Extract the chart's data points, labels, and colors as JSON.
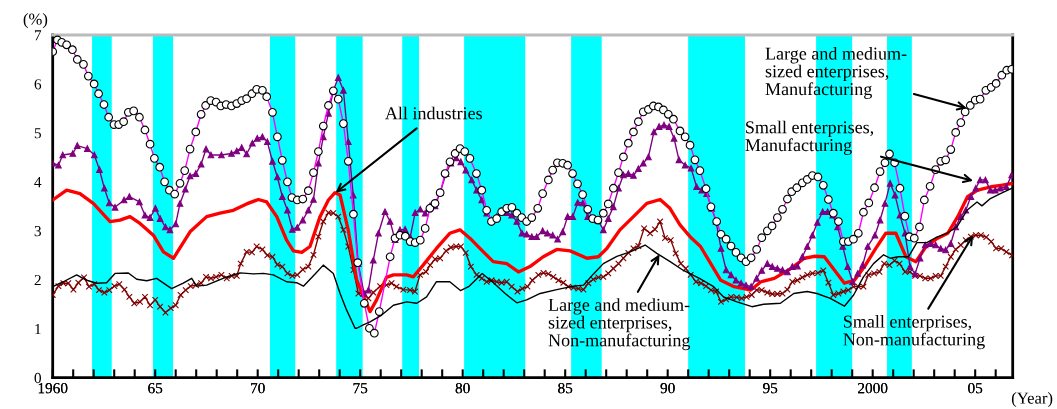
{
  "chart_data": {
    "type": "line",
    "ylabel": "(%)",
    "xlabel": "(Year)",
    "xlim": [
      1960,
      2006.83
    ],
    "ylim": [
      0,
      7
    ],
    "yticks": [
      0,
      1,
      2,
      3,
      4,
      5,
      6,
      7
    ],
    "xticks": [
      {
        "value": 1960,
        "label": null
      },
      {
        "value": 1961,
        "label": null
      },
      {
        "value": 1962,
        "label": null
      },
      {
        "value": 1963,
        "label": null
      },
      {
        "value": 1964,
        "label": null
      },
      {
        "value": 1965,
        "label": null
      },
      {
        "value": 1966,
        "label": null
      },
      {
        "value": 1967,
        "label": null
      },
      {
        "value": 1968,
        "label": null
      },
      {
        "value": 1969,
        "label": null
      },
      {
        "value": 1970,
        "label": null
      },
      {
        "value": 1971,
        "label": null
      },
      {
        "value": 1972,
        "label": null
      },
      {
        "value": 1973,
        "label": null
      },
      {
        "value": 1974,
        "label": null
      },
      {
        "value": 1975,
        "label": null
      },
      {
        "value": 1976,
        "label": null
      },
      {
        "value": 1977,
        "label": null
      },
      {
        "value": 1978,
        "label": null
      },
      {
        "value": 1979,
        "label": null
      },
      {
        "value": 1980,
        "label": null
      },
      {
        "value": 1981,
        "label": null
      },
      {
        "value": 1982,
        "label": null
      },
      {
        "value": 1983,
        "label": null
      },
      {
        "value": 1984,
        "label": null
      },
      {
        "value": 1985,
        "label": null
      },
      {
        "value": 1986,
        "label": null
      },
      {
        "value": 1987,
        "label": null
      },
      {
        "value": 1988,
        "label": null
      },
      {
        "value": 1989,
        "label": null
      },
      {
        "value": 1990,
        "label": null
      },
      {
        "value": 1991,
        "label": null
      },
      {
        "value": 1992,
        "label": null
      },
      {
        "value": 1993,
        "label": null
      },
      {
        "value": 1994,
        "label": null
      },
      {
        "value": 1995,
        "label": null
      },
      {
        "value": 1996,
        "label": null
      },
      {
        "value": 1997,
        "label": null
      },
      {
        "value": 1998,
        "label": null
      },
      {
        "value": 1999,
        "label": null
      },
      {
        "value": 2000,
        "label": null
      },
      {
        "value": 2001,
        "label": null
      },
      {
        "value": 2002,
        "label": null
      },
      {
        "value": 2003,
        "label": null
      },
      {
        "value": 2004,
        "label": null
      },
      {
        "value": 2005,
        "label": null
      },
      {
        "value": 2006,
        "label": null
      },
      {
        "value": 1960,
        "label": "1960"
      },
      {
        "value": 1965,
        "label": "65"
      },
      {
        "value": 1970,
        "label": "70"
      },
      {
        "value": 1975,
        "label": "75"
      },
      {
        "value": 1980,
        "label": "80"
      },
      {
        "value": 1985,
        "label": "85"
      },
      {
        "value": 1990,
        "label": "90"
      },
      {
        "value": 1995,
        "label": "95"
      },
      {
        "value": 2000,
        "label": "2000"
      },
      {
        "value": 2005,
        "label": "05"
      }
    ],
    "bands": [
      {
        "axis": "x",
        "from": 1961.92,
        "to": 1962.88,
        "color": "#00ffff"
      },
      {
        "axis": "x",
        "from": 1964.89,
        "to": 1965.87,
        "color": "#00ffff"
      },
      {
        "axis": "x",
        "from": 1970.6,
        "to": 1971.83,
        "color": "#00ffff"
      },
      {
        "axis": "x",
        "from": 1973.83,
        "to": 1975.12,
        "color": "#00ffff"
      },
      {
        "axis": "x",
        "from": 1977.05,
        "to": 1977.87,
        "color": "#00ffff"
      },
      {
        "axis": "x",
        "from": 1980.07,
        "to": 1983.05,
        "color": "#00ffff"
      },
      {
        "axis": "x",
        "from": 1985.29,
        "to": 1986.78,
        "color": "#00ffff"
      },
      {
        "axis": "x",
        "from": 1991.0,
        "to": 1993.77,
        "color": "#00ffff"
      },
      {
        "axis": "x",
        "from": 1997.24,
        "to": 1999.0,
        "color": "#00ffff"
      },
      {
        "axis": "x",
        "from": 2000.7,
        "to": 2001.91,
        "color": "#00ffff"
      }
    ],
    "series": [
      {
        "color": "#000000",
        "marker": "none",
        "x": [
          1960.0,
          1960.52,
          1961.17,
          1961.66,
          1962.15,
          1962.63,
          1963.04,
          1963.69,
          1964.1,
          1964.59,
          1965.07,
          1965.8,
          1966.37,
          1966.78,
          1967.02,
          1967.51,
          1968.49,
          1969.14,
          1969.79,
          1970.28,
          1970.76,
          1971.41,
          1971.9,
          1972.23,
          1972.8,
          1973.2,
          1973.69,
          1974.02,
          1974.34,
          1974.75,
          1974.83,
          1975.15,
          1975.48,
          1976.05,
          1976.62,
          1977.27,
          1977.76,
          1978.24,
          1978.72,
          1979.37,
          1979.89,
          1980.29,
          1980.95,
          1981.5,
          1982.07,
          1982.64,
          1983.12,
          1983.78,
          1984.59,
          1985.4,
          1985.89,
          1986.38,
          1986.86,
          1987.52,
          1988.17,
          1988.9,
          1989.47,
          1990.12,
          1990.77,
          1991.55,
          1992.24,
          1992.73,
          1993.38,
          1994.11,
          1994.68,
          1995.5,
          1996.15,
          1996.8,
          1997.28,
          1997.93,
          1998.62,
          1999.07,
          1999.55,
          2000.04,
          2000.53,
          2000.86,
          2001.26,
          2001.75,
          2002.15,
          2002.64,
          2003.13,
          2003.62,
          2004.11,
          2004.6,
          2005.09,
          2005.33,
          2005.74,
          2006.23,
          2006.8
        ],
        "values": [
          1.86,
          1.96,
          2.1,
          1.99,
          1.93,
          1.94,
          2.13,
          2.14,
          2.01,
          1.98,
          2.03,
          1.82,
          1.93,
          2.03,
          1.87,
          1.89,
          2.06,
          2.14,
          2.12,
          2.13,
          2.1,
          1.96,
          1.94,
          1.87,
          2.12,
          2.3,
          2.13,
          1.72,
          1.38,
          1.01,
          1.01,
          1.08,
          1.14,
          1.28,
          1.48,
          1.55,
          1.52,
          1.65,
          1.96,
          1.96,
          1.78,
          1.86,
          2.13,
          1.94,
          1.72,
          1.53,
          1.59,
          1.72,
          1.8,
          1.87,
          1.89,
          2.12,
          2.33,
          2.48,
          2.57,
          2.71,
          2.54,
          2.37,
          2.19,
          2.03,
          1.86,
          1.65,
          1.55,
          1.45,
          1.5,
          1.52,
          1.72,
          1.76,
          1.72,
          1.62,
          1.46,
          1.69,
          2.06,
          2.33,
          2.51,
          2.44,
          2.47,
          2.47,
          2.76,
          2.76,
          2.87,
          2.95,
          3.08,
          3.42,
          3.59,
          3.51,
          3.66,
          3.76,
          3.87
        ]
      },
      {
        "color": "#800000",
        "marker": "cross",
        "x": [
          1960.0,
          1960.28,
          1960.52,
          1960.76,
          1961.01,
          1961.25,
          1961.53,
          1961.77,
          1962.03,
          1962.26,
          1962.52,
          1962.76,
          1963.01,
          1963.25,
          1963.5,
          1963.74,
          1963.98,
          1964.26,
          1964.5,
          1964.75,
          1965.0,
          1965.24,
          1965.5,
          1965.76,
          1966.0,
          1966.24,
          1966.49,
          1966.73,
          1966.99,
          1967.24,
          1967.48,
          1967.72,
          1967.97,
          1968.23,
          1968.49,
          1968.73,
          1968.98,
          1969.17,
          1969.46,
          1969.72,
          1969.95,
          1970.23,
          1970.47,
          1970.72,
          1970.96,
          1971.2,
          1971.45,
          1971.69,
          1971.93,
          1972.2,
          1972.47,
          1972.72,
          1972.96,
          1973.2,
          1973.45,
          1973.69,
          1973.93,
          1974.18,
          1974.42,
          1974.67,
          1974.91,
          1975.15,
          1975.4,
          1975.64,
          1975.97,
          1976.28,
          1976.53,
          1976.77,
          1977.1,
          1977.43,
          1977.67,
          1977.92,
          1978.21,
          1978.41,
          1978.65,
          1978.9,
          1979.19,
          1979.42,
          1979.68,
          1979.91,
          1980.15,
          1980.4,
          1980.68,
          1980.93,
          1981.17,
          1981.41,
          1981.66,
          1981.9,
          1982.15,
          1982.39,
          1982.67,
          1982.91,
          1983.16,
          1983.4,
          1983.69,
          1983.94,
          1984.18,
          1984.42,
          1984.67,
          1984.91,
          1985.15,
          1985.4,
          1985.64,
          1985.89,
          1986.13,
          1986.37,
          1986.62,
          1986.86,
          1987.1,
          1987.35,
          1987.6,
          1987.84,
          1988.08,
          1988.33,
          1988.57,
          1988.85,
          1989.14,
          1989.38,
          1989.63,
          1989.87,
          1990.15,
          1990.39,
          1990.64,
          1990.88,
          1991.12,
          1991.38,
          1991.63,
          1991.87,
          1992.11,
          1992.36,
          1992.6,
          1992.85,
          1993.09,
          1993.37,
          1993.61,
          1993.85,
          1994.1,
          1994.34,
          1994.59,
          1994.86,
          1995.1,
          1995.35,
          1995.6,
          1995.84,
          1996.08,
          1996.33,
          1996.57,
          1996.81,
          1997.06,
          1997.33,
          1997.59,
          1997.84,
          1998.08,
          1998.33,
          1998.57,
          1998.81,
          1999.06,
          1999.3,
          1999.55,
          1999.79,
          2000.07,
          2000.33,
          2000.56,
          2000.82,
          2001.06,
          2001.31,
          2001.58,
          2001.82,
          2002.07,
          2002.31,
          2002.56,
          2002.83,
          2003.07,
          2003.32,
          2003.56,
          2003.81,
          2004.05,
          2004.3,
          2004.54,
          2004.79,
          2005.03,
          2005.28,
          2005.54,
          2005.78,
          2006.02,
          2006.27,
          2006.52,
          2006.8
        ],
        "values": [
          1.69,
          1.87,
          1.93,
          1.93,
          1.8,
          1.94,
          2.05,
          1.86,
          1.91,
          1.79,
          1.74,
          1.79,
          1.87,
          1.91,
          1.8,
          1.65,
          1.52,
          1.55,
          1.65,
          1.48,
          1.59,
          1.45,
          1.33,
          1.42,
          1.48,
          1.69,
          1.79,
          1.87,
          1.89,
          1.93,
          2.06,
          2.03,
          2.06,
          2.1,
          2.03,
          2.08,
          2.08,
          2.33,
          2.57,
          2.56,
          2.68,
          2.62,
          2.5,
          2.47,
          2.31,
          2.27,
          2.13,
          2.08,
          2.1,
          2.21,
          2.27,
          2.51,
          2.88,
          3.19,
          3.37,
          3.36,
          3.29,
          3.02,
          2.68,
          2.2,
          1.72,
          1.72,
          1.62,
          1.74,
          1.87,
          1.89,
          1.93,
          1.86,
          1.8,
          1.79,
          1.76,
          2.1,
          2.16,
          2.3,
          2.42,
          2.44,
          2.59,
          2.66,
          2.68,
          2.68,
          2.55,
          2.27,
          2.1,
          2.03,
          1.96,
          1.99,
          1.96,
          1.94,
          1.96,
          1.86,
          1.76,
          1.82,
          1.86,
          1.99,
          2.1,
          2.14,
          2.12,
          2.06,
          1.99,
          1.94,
          1.86,
          1.84,
          1.82,
          1.8,
          1.93,
          2.01,
          2.05,
          2.06,
          2.13,
          2.23,
          2.33,
          2.44,
          2.55,
          2.64,
          2.69,
          3.05,
          2.95,
          3.03,
          3.19,
          2.85,
          2.81,
          2.54,
          2.33,
          2.23,
          2.1,
          1.96,
          1.93,
          1.87,
          1.79,
          1.76,
          1.55,
          1.6,
          1.65,
          1.64,
          1.62,
          1.65,
          1.69,
          1.79,
          1.79,
          1.74,
          1.71,
          1.71,
          1.72,
          1.8,
          1.96,
          1.99,
          2.05,
          2.1,
          2.13,
          2.14,
          2.19,
          1.94,
          1.69,
          1.72,
          1.76,
          1.79,
          1.86,
          1.86,
          1.86,
          2.1,
          2.13,
          2.16,
          2.33,
          2.3,
          2.39,
          2.33,
          2.16,
          2.16,
          2.08,
          2.08,
          2.03,
          2.03,
          2.08,
          2.08,
          2.27,
          2.47,
          2.62,
          2.71,
          2.81,
          2.88,
          2.91,
          2.91,
          2.87,
          2.78,
          2.64,
          2.64,
          2.57,
          2.5
        ]
      },
      {
        "color": "#ff0000",
        "marker": "none",
        "x": [
          1960.0,
          1960.68,
          1961.33,
          1961.98,
          1962.8,
          1963.28,
          1963.77,
          1964.26,
          1964.91,
          1965.4,
          1965.89,
          1966.7,
          1967.51,
          1968.16,
          1968.81,
          1969.46,
          1970.03,
          1970.44,
          1970.93,
          1971.41,
          1971.74,
          1972.15,
          1972.55,
          1973.04,
          1973.45,
          1973.77,
          1974.02,
          1974.42,
          1974.83,
          1975.48,
          1975.8,
          1976.28,
          1976.62,
          1977.26,
          1977.59,
          1978.07,
          1978.72,
          1979.37,
          1979.87,
          1980.35,
          1980.84,
          1981.49,
          1982.15,
          1982.72,
          1983.28,
          1983.93,
          1984.59,
          1985.24,
          1986.06,
          1986.62,
          1987.03,
          1987.67,
          1988.33,
          1988.98,
          1989.63,
          1990.11,
          1990.6,
          1991.09,
          1991.6,
          1992.1,
          1992.59,
          1993.24,
          1994.05,
          1994.55,
          1995.2,
          1996.01,
          1996.67,
          1997.15,
          1997.64,
          1998.13,
          1998.62,
          1999.11,
          1999.6,
          2000.15,
          2000.64,
          2001.13,
          2001.62,
          2002.11,
          2002.6,
          2003.17,
          2003.66,
          2004.15,
          2004.63,
          2005.12,
          2005.77,
          2006.26,
          2006.83
        ],
        "values": [
          3.63,
          3.83,
          3.76,
          3.56,
          3.19,
          3.22,
          3.29,
          3.15,
          2.91,
          2.57,
          2.44,
          2.98,
          3.29,
          3.36,
          3.42,
          3.55,
          3.64,
          3.59,
          3.29,
          2.81,
          2.59,
          2.56,
          2.68,
          3.29,
          3.63,
          3.78,
          3.73,
          3.01,
          1.99,
          1.35,
          1.59,
          2.05,
          2.1,
          2.1,
          2.06,
          2.3,
          2.64,
          2.95,
          3.02,
          2.85,
          2.64,
          2.37,
          2.33,
          2.16,
          2.27,
          2.47,
          2.62,
          2.59,
          2.44,
          2.47,
          2.64,
          3.02,
          3.29,
          3.56,
          3.64,
          3.46,
          3.12,
          2.88,
          2.68,
          2.33,
          1.99,
          1.86,
          1.79,
          1.96,
          2.03,
          2.23,
          2.44,
          2.48,
          2.47,
          2.2,
          1.93,
          1.99,
          2.27,
          2.64,
          2.95,
          2.95,
          2.47,
          2.37,
          2.68,
          2.85,
          2.95,
          3.29,
          3.7,
          3.83,
          3.9,
          3.93,
          3.97
        ]
      },
      {
        "color": "#800080",
        "marker": "triangle",
        "x": [
          1960.0,
          1960.28,
          1960.49,
          1960.98,
          1961.2,
          1961.69,
          1962.03,
          1962.28,
          1962.52,
          1962.76,
          1963.04,
          1963.48,
          1963.74,
          1964.23,
          1964.5,
          1964.75,
          1965.01,
          1965.24,
          1965.5,
          1965.72,
          1966.0,
          1966.21,
          1966.47,
          1966.7,
          1966.98,
          1967.24,
          1967.48,
          1967.72,
          1968.23,
          1968.72,
          1968.98,
          1969.22,
          1969.46,
          1969.74,
          1969.98,
          1970.23,
          1970.47,
          1970.72,
          1970.96,
          1971.2,
          1971.45,
          1971.69,
          1971.93,
          1972.2,
          1972.47,
          1972.72,
          1972.96,
          1973.2,
          1973.45,
          1973.69,
          1973.93,
          1974.18,
          1974.42,
          1974.66,
          1974.9,
          1975.19,
          1975.4,
          1975.64,
          1975.89,
          1976.21,
          1976.46,
          1976.7,
          1976.94,
          1977.19,
          1977.44,
          1977.68,
          1977.93,
          1978.17,
          1978.41,
          1978.65,
          1978.9,
          1979.19,
          1979.42,
          1979.68,
          1979.91,
          1980.15,
          1980.44,
          1980.68,
          1980.93,
          1981.17,
          1981.41,
          1981.66,
          1981.9,
          1982.15,
          1982.39,
          1982.64,
          1982.89,
          1983.12,
          1983.37,
          1983.61,
          1983.9,
          1984.13,
          1984.39,
          1984.63,
          1984.88,
          1985.12,
          1985.37,
          1985.61,
          1985.86,
          1986.1,
          1986.34,
          1986.6,
          1986.86,
          1987.1,
          1987.35,
          1987.6,
          1987.84,
          1988.08,
          1988.33,
          1988.57,
          1988.81,
          1989.06,
          1989.33,
          1989.58,
          1989.82,
          1990.07,
          1990.31,
          1990.55,
          1990.85,
          1991.14,
          1991.41,
          1991.66,
          1991.9,
          1992.15,
          1992.36,
          1992.6,
          1992.85,
          1993.09,
          1993.33,
          1993.58,
          1993.82,
          1994.07,
          1994.34,
          1994.59,
          1994.86,
          1995.1,
          1995.35,
          1995.6,
          1995.84,
          1996.08,
          1996.33,
          1996.57,
          1996.81,
          1997.06,
          1997.3,
          1997.56,
          1997.8,
          1998.05,
          1998.29,
          1998.54,
          1998.78,
          1999.02,
          1999.27,
          1999.51,
          1999.76,
          2000.11,
          2000.36,
          2000.6,
          2000.85,
          2001.09,
          2001.33,
          2001.58,
          2001.82,
          2002.07,
          2002.31,
          2002.56,
          2002.83,
          2003.07,
          2003.32,
          2003.56,
          2003.81,
          2004.05,
          2004.3,
          2004.54,
          2004.79,
          2005.03,
          2005.24,
          2005.5,
          2005.74,
          2005.98,
          2006.23,
          2006.52,
          2006.78
        ],
        "values": [
          4.38,
          4.34,
          4.55,
          4.58,
          4.74,
          4.68,
          4.55,
          4.25,
          3.87,
          3.57,
          3.48,
          3.63,
          3.7,
          3.59,
          3.32,
          3.27,
          3.46,
          3.25,
          3.08,
          3.02,
          3.14,
          3.56,
          3.85,
          4.12,
          4.17,
          4.36,
          4.67,
          4.55,
          4.55,
          4.58,
          4.63,
          4.7,
          4.57,
          4.79,
          4.89,
          4.92,
          4.82,
          4.42,
          4.1,
          3.7,
          3.42,
          3.03,
          3.07,
          3.22,
          3.42,
          3.64,
          4.38,
          4.92,
          5.4,
          5.86,
          6.13,
          5.87,
          4.82,
          3.73,
          2.33,
          1.72,
          1.79,
          2.4,
          2.95,
          3.39,
          3.19,
          2.82,
          3.02,
          3.03,
          2.87,
          3.37,
          3.44,
          3.36,
          3.51,
          3.51,
          3.78,
          4.17,
          4.38,
          4.49,
          4.41,
          4.24,
          4.04,
          3.83,
          3.63,
          3.36,
          3.22,
          3.29,
          3.41,
          3.37,
          3.32,
          3.19,
          2.95,
          2.93,
          2.88,
          2.88,
          3.0,
          2.95,
          2.91,
          2.83,
          2.98,
          3.29,
          3.29,
          3.58,
          3.57,
          3.29,
          3.25,
          3.22,
          3.02,
          3.25,
          3.49,
          3.87,
          4.14,
          4.17,
          4.13,
          4.27,
          4.38,
          4.51,
          5.02,
          5.13,
          5.16,
          5.13,
          4.89,
          4.45,
          4.34,
          4.28,
          3.9,
          3.83,
          3.76,
          3.46,
          3.19,
          2.64,
          2.2,
          2.1,
          1.99,
          1.93,
          1.89,
          1.86,
          2.03,
          2.19,
          2.33,
          2.27,
          2.23,
          2.2,
          2.16,
          2.27,
          2.28,
          2.47,
          2.68,
          2.91,
          3.17,
          3.39,
          3.39,
          3.32,
          3.08,
          2.68,
          2.27,
          1.96,
          2.13,
          2.3,
          2.68,
          2.91,
          3.22,
          3.56,
          3.97,
          3.73,
          3.32,
          2.95,
          2.27,
          2.12,
          2.44,
          2.71,
          2.74,
          2.71,
          2.64,
          2.61,
          2.74,
          3.08,
          3.29,
          3.42,
          3.7,
          3.87,
          4.04,
          4.04,
          3.83,
          3.83,
          3.87,
          3.9,
          4.14
        ]
      },
      {
        "color": "#ff00ff",
        "marker": "circle",
        "x": [
          1960.0,
          1960.23,
          1960.44,
          1960.68,
          1960.96,
          1961.2,
          1961.5,
          1961.74,
          1962.02,
          1962.24,
          1962.5,
          1962.73,
          1962.99,
          1963.22,
          1963.46,
          1963.69,
          1963.95,
          1964.23,
          1964.5,
          1964.75,
          1964.96,
          1965.22,
          1965.46,
          1965.69,
          1965.95,
          1966.21,
          1966.44,
          1966.7,
          1966.98,
          1967.24,
          1967.46,
          1967.71,
          1967.97,
          1968.2,
          1968.46,
          1968.72,
          1968.98,
          1969.22,
          1969.46,
          1969.72,
          1969.95,
          1970.23,
          1970.44,
          1970.72,
          1970.96,
          1971.2,
          1971.45,
          1971.67,
          1971.93,
          1972.2,
          1972.47,
          1972.72,
          1972.96,
          1973.2,
          1973.45,
          1973.69,
          1973.93,
          1974.18,
          1974.42,
          1974.67,
          1974.88,
          1975.2,
          1975.45,
          1975.69,
          1975.93,
          1976.46,
          1976.7,
          1976.94,
          1977.2,
          1977.44,
          1977.68,
          1977.93,
          1978.17,
          1978.4,
          1978.65,
          1978.9,
          1979.14,
          1979.38,
          1979.63,
          1979.87,
          1980.1,
          1980.35,
          1980.67,
          1980.93,
          1981.17,
          1981.4,
          1981.66,
          1981.9,
          1982.15,
          1982.4,
          1982.64,
          1982.88,
          1983.12,
          1983.37,
          1983.66,
          1983.9,
          1984.18,
          1984.39,
          1984.62,
          1984.88,
          1985.12,
          1985.36,
          1985.6,
          1985.85,
          1986.1,
          1986.34,
          1986.6,
          1986.86,
          1987.1,
          1987.35,
          1987.6,
          1987.84,
          1988.08,
          1988.33,
          1988.57,
          1988.81,
          1989.06,
          1989.3,
          1989.55,
          1989.79,
          1990.03,
          1990.28,
          1990.6,
          1990.85,
          1991.09,
          1991.33,
          1991.57,
          1991.87,
          1992.11,
          1992.39,
          1992.6,
          1992.85,
          1993.09,
          1993.33,
          1993.58,
          1993.82,
          1994.07,
          1994.34,
          1994.59,
          1994.86,
          1995.09,
          1995.35,
          1995.6,
          1995.84,
          1996.05,
          1996.3,
          1996.57,
          1996.81,
          1997.06,
          1997.33,
          1997.59,
          1997.84,
          1998.08,
          1998.33,
          1998.57,
          1998.81,
          1999.06,
          1999.3,
          1999.55,
          1999.81,
          2000.09,
          2000.36,
          2000.6,
          2000.82,
          2001.07,
          2001.33,
          2001.57,
          2001.79,
          2002.03,
          2002.28,
          2002.52,
          2002.8,
          2003.07,
          2003.32,
          2003.56,
          2003.81,
          2004.05,
          2004.3,
          2004.51,
          2004.76,
          2005.0,
          2005.24,
          2005.52,
          2005.78,
          2006.02,
          2006.3,
          2006.54,
          2006.78
        ],
        "values": [
          6.66,
          6.9,
          6.85,
          6.8,
          6.7,
          6.5,
          6.4,
          6.16,
          6.0,
          5.8,
          5.58,
          5.32,
          5.17,
          5.17,
          5.23,
          5.42,
          5.45,
          5.32,
          5.06,
          4.77,
          4.48,
          4.3,
          4.0,
          3.83,
          3.75,
          3.97,
          4.23,
          4.67,
          5.02,
          5.38,
          5.56,
          5.66,
          5.63,
          5.55,
          5.58,
          5.55,
          5.6,
          5.66,
          5.7,
          5.8,
          5.89,
          5.87,
          5.74,
          5.42,
          4.92,
          4.44,
          4.0,
          3.68,
          3.63,
          3.65,
          3.82,
          4.19,
          4.62,
          5.14,
          5.56,
          5.86,
          5.69,
          5.19,
          4.42,
          3.34,
          2.35,
          1.52,
          1.01,
          0.91,
          1.35,
          2.47,
          2.85,
          2.91,
          2.89,
          2.78,
          2.76,
          2.81,
          3.05,
          3.46,
          3.56,
          3.78,
          4.17,
          4.41,
          4.58,
          4.68,
          4.62,
          4.48,
          4.17,
          3.83,
          3.42,
          3.19,
          3.25,
          3.39,
          3.46,
          3.48,
          3.36,
          3.27,
          3.19,
          3.27,
          3.46,
          3.76,
          4.04,
          4.24,
          4.39,
          4.38,
          4.34,
          4.17,
          3.96,
          3.74,
          3.44,
          3.25,
          3.22,
          3.36,
          3.55,
          3.87,
          4.19,
          4.51,
          4.79,
          5.02,
          5.23,
          5.43,
          5.48,
          5.55,
          5.53,
          5.47,
          5.38,
          5.28,
          5.04,
          4.92,
          4.75,
          4.45,
          4.23,
          3.86,
          3.49,
          3.19,
          2.93,
          2.83,
          2.69,
          2.56,
          2.45,
          2.37,
          2.45,
          2.62,
          2.86,
          3.0,
          3.1,
          3.27,
          3.44,
          3.65,
          3.8,
          3.88,
          3.98,
          4.05,
          4.13,
          4.1,
          3.93,
          3.64,
          3.36,
          3.19,
          2.78,
          2.78,
          2.83,
          2.95,
          3.38,
          3.57,
          3.88,
          4.21,
          4.39,
          4.57,
          4.39,
          3.87,
          3.3,
          2.88,
          2.85,
          3.08,
          3.63,
          3.91,
          4.25,
          4.42,
          4.45,
          4.66,
          5.01,
          5.21,
          5.43,
          5.56,
          5.67,
          5.69,
          5.87,
          5.93,
          6.01,
          6.18,
          6.28,
          6.3
        ]
      }
    ],
    "annotations": [
      {
        "text": "All industries",
        "x": 1973.8,
        "y": 3.78
      },
      {
        "text": "Large and medium-\nsized enterprises,\nNon-manufacturing",
        "x": 1989.6,
        "y": 2.52
      },
      {
        "text": "Small enterprises,\nNon-manufacturing",
        "x": 2004.9,
        "y": 2.91
      },
      {
        "text": "Large and medium-\nsized enterprises,\nManufacturing",
        "x": 2004.6,
        "y": 5.5
      },
      {
        "text": "Small enterprises,\nManufacturing",
        "x": 2004.9,
        "y": 4.02
      }
    ]
  }
}
